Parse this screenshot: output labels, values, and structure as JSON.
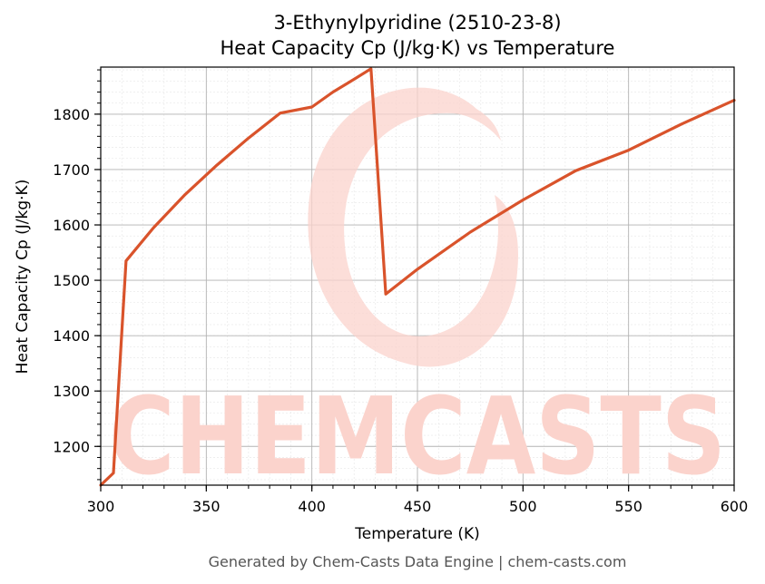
{
  "chart_data": {
    "type": "line",
    "title": "3-Ethynylpyridine (2510-23-8)",
    "subtitle": "Heat Capacity Cp (J/kg·K) vs Temperature",
    "xlabel": "Temperature (K)",
    "ylabel": "Heat Capacity Cp (J/kg·K)",
    "xlim": [
      300,
      600
    ],
    "ylim": [
      1130,
      1885
    ],
    "xticks": [
      "300",
      "350",
      "400",
      "450",
      "500",
      "550",
      "600"
    ],
    "yticks": [
      "1200",
      "1300",
      "1400",
      "1500",
      "1600",
      "1700",
      "1800"
    ],
    "grid": true,
    "line_color": "#d9532b",
    "series": [
      {
        "x": [
          300,
          306,
          312,
          325,
          340,
          355,
          370,
          385,
          400,
          410,
          420,
          428,
          435,
          450,
          475,
          500,
          525,
          550,
          575,
          600
        ],
        "values": [
          1130,
          1152,
          1535,
          1595,
          1655,
          1708,
          1757,
          1802,
          1813,
          1840,
          1863,
          1882,
          1475,
          1520,
          1587,
          1645,
          1698,
          1735,
          1782,
          1825
        ]
      }
    ]
  },
  "watermark": {
    "text": "CHEMCASTS",
    "color": "#fbd3cc"
  },
  "footer": "Generated by Chem-Casts Data Engine | chem-casts.com"
}
